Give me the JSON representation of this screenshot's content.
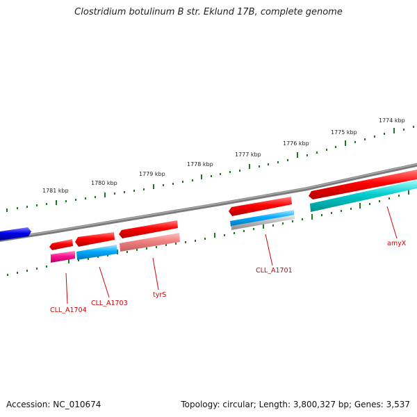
{
  "title": "Clostridium botulinum B str. Eklund 17B, complete genome",
  "footer": {
    "accession": "Accession: NC_010674",
    "summary": "Topology: circular; Length: 3,800,327 bp; Genes: 3,537"
  },
  "outer_ticks": [
    "1774 kbp",
    "1775 kbp",
    "1776 kbp",
    "1777 kbp",
    "1778 kbp",
    "1779 kbp",
    "1780 kbp",
    "1781 kbp"
  ],
  "genes": [
    {
      "label": "amyX"
    },
    {
      "label": "CLL_A1701"
    },
    {
      "label": "tyrS"
    },
    {
      "label": "CLL_A1703"
    },
    {
      "label": "CLL_A1704"
    }
  ],
  "colors": {
    "backbone": "#7b7b7b",
    "forward_cds": "#ff0000",
    "reverse_cds": "#0000ee",
    "cyan": "#00cccc",
    "sky": "#00aaff",
    "pink": "#ff1493",
    "salmon": "#f08080",
    "grey": "#bbbbbb",
    "tick": "#1a7a1a",
    "label": "#cc0000"
  }
}
